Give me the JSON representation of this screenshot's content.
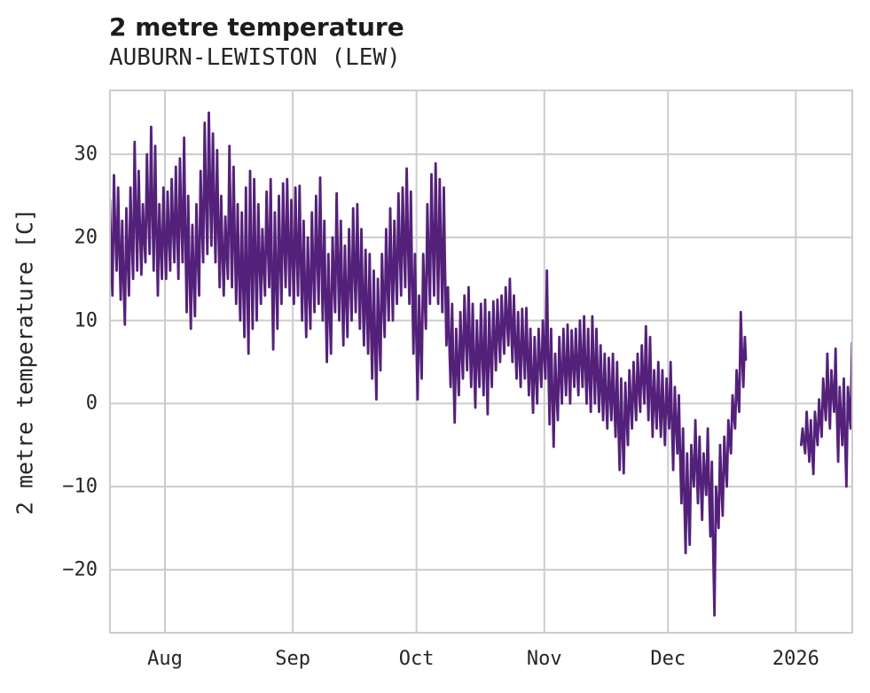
{
  "page": {
    "title": "2 metre temperature",
    "subtitle": "AUBURN-LEWISTON (LEW)"
  },
  "chart_data": {
    "type": "line",
    "title": "2 metre temperature",
    "subtitle": "AUBURN-LEWISTON (LEW)",
    "xlabel": "",
    "ylabel": "2 metre temperature [C]",
    "grid": true,
    "legend_position": "none",
    "line_color": "#54217a",
    "grid_color": "#cccccc",
    "text_color": "#262626",
    "background_color": "#ffffff",
    "x_axis": {
      "unit": "days since 2025-07-18 00:00",
      "domain": [
        0.45,
        180.9
      ],
      "ticks": [
        {
          "label": "Aug",
          "day": 14
        },
        {
          "label": "Sep",
          "day": 45
        },
        {
          "label": "Oct",
          "day": 75
        },
        {
          "label": "Nov",
          "day": 106
        },
        {
          "label": "Dec",
          "day": 136
        },
        {
          "label": "2026",
          "day": 167
        }
      ]
    },
    "y_axis": {
      "unit": "degrees C",
      "domain": [
        -27.7,
        37.8
      ],
      "ticks": [
        {
          "label": "30",
          "value": 30
        },
        {
          "label": "20",
          "value": 20
        },
        {
          "label": "10",
          "value": 10
        },
        {
          "label": "0",
          "value": 0
        },
        {
          "label": "−10",
          "value": -10
        },
        {
          "label": "−20",
          "value": -20
        }
      ]
    },
    "series": [
      {
        "name": "2 metre temperature, hourly trace (daily min/max envelope, estimated)",
        "segments": [
          {
            "start_day": 0,
            "start_date": "2025-07-18",
            "end_date": "2025-12-19",
            "daily_min_max": [
              [
                10.5,
                24.5
              ],
              [
                13,
                27.5
              ],
              [
                16,
                26
              ],
              [
                12.5,
                22
              ],
              [
                9.5,
                23.5
              ],
              [
                13,
                26
              ],
              [
                15,
                31.5
              ],
              [
                16,
                28
              ],
              [
                15.5,
                24
              ],
              [
                17,
                30
              ],
              [
                18,
                33.3
              ],
              [
                16,
                31
              ],
              [
                13,
                24
              ],
              [
                15,
                26
              ],
              [
                15,
                25.5
              ],
              [
                16,
                27
              ],
              [
                17,
                28.5
              ],
              [
                15,
                29.5
              ],
              [
                17,
                32
              ],
              [
                11,
                25
              ],
              [
                9,
                21.5
              ],
              [
                10.5,
                24
              ],
              [
                13,
                28
              ],
              [
                17,
                33.8
              ],
              [
                18,
                35
              ],
              [
                19,
                32.5
              ],
              [
                17,
                30.5
              ],
              [
                14,
                25
              ],
              [
                13,
                22.5
              ],
              [
                15,
                31
              ],
              [
                14,
                28.5
              ],
              [
                12,
                24
              ],
              [
                10,
                23
              ],
              [
                8,
                26
              ],
              [
                6,
                28
              ],
              [
                9,
                27
              ],
              [
                10,
                24
              ],
              [
                12,
                21
              ],
              [
                13,
                25.5
              ],
              [
                14,
                27
              ],
              [
                6.5,
                23
              ],
              [
                9,
                25
              ],
              [
                12,
                26.5
              ],
              [
                14,
                27
              ],
              [
                13,
                24.5
              ],
              [
                12,
                26
              ],
              [
                13,
                26.2
              ],
              [
                10,
                22
              ],
              [
                8,
                20
              ],
              [
                9,
                23
              ],
              [
                11,
                25
              ],
              [
                12,
                27.2
              ],
              [
                10,
                22
              ],
              [
                5,
                18
              ],
              [
                6,
                20
              ],
              [
                11,
                25.3
              ],
              [
                10,
                22
              ],
              [
                7,
                19
              ],
              [
                8,
                21
              ],
              [
                10,
                23.5
              ],
              [
                11,
                24
              ],
              [
                9,
                21
              ],
              [
                7,
                18.5
              ],
              [
                6,
                18
              ],
              [
                3,
                16
              ],
              [
                0.5,
                15
              ],
              [
                4,
                18
              ],
              [
                8,
                21
              ],
              [
                10,
                23.5
              ],
              [
                10,
                22
              ],
              [
                12,
                25.3
              ],
              [
                13,
                26
              ],
              [
                14,
                28.3
              ],
              [
                12,
                25.5
              ],
              [
                6,
                18
              ],
              [
                0.5,
                13
              ],
              [
                3,
                18
              ],
              [
                9,
                24
              ],
              [
                12,
                27.6
              ],
              [
                13,
                28.9
              ],
              [
                12,
                27
              ],
              [
                11,
                26
              ],
              [
                7,
                14
              ],
              [
                2,
                12
              ],
              [
                -2.3,
                9
              ],
              [
                1,
                11
              ],
              [
                3,
                13
              ],
              [
                4,
                14
              ],
              [
                2,
                12
              ],
              [
                -0.5,
                10
              ],
              [
                2,
                12
              ],
              [
                1,
                12.5
              ],
              [
                -1.3,
                11
              ],
              [
                2,
                12.3
              ],
              [
                4,
                12.5
              ],
              [
                5,
                13
              ],
              [
                6,
                14
              ],
              [
                7,
                15
              ],
              [
                5,
                13
              ],
              [
                3,
                11
              ],
              [
                2,
                11.4
              ],
              [
                3,
                11.5
              ],
              [
                1,
                9
              ],
              [
                -1.1,
                8
              ],
              [
                0,
                9
              ],
              [
                2,
                10
              ],
              [
                3,
                16
              ],
              [
                -2.5,
                9
              ],
              [
                -5.2,
                6
              ],
              [
                -2,
                8
              ],
              [
                0,
                9
              ],
              [
                1,
                9.5
              ],
              [
                0,
                8.8
              ],
              [
                2,
                9
              ],
              [
                1,
                10
              ],
              [
                2,
                10.5
              ],
              [
                0,
                9
              ],
              [
                -1,
                10.5
              ],
              [
                0,
                9
              ],
              [
                -1,
                7
              ],
              [
                -2,
                6
              ],
              [
                -3,
                5.5
              ],
              [
                -2,
                6
              ],
              [
                -4,
                5
              ],
              [
                -8,
                3
              ],
              [
                -8.4,
                2.5
              ],
              [
                -5,
                4
              ],
              [
                -3,
                5
              ],
              [
                -2,
                6
              ],
              [
                -1,
                7
              ],
              [
                0,
                9.3
              ],
              [
                -2,
                8
              ],
              [
                -4,
                4
              ],
              [
                -3,
                5
              ],
              [
                -4,
                4
              ],
              [
                -5,
                3
              ],
              [
                -3,
                5
              ],
              [
                -8,
                2
              ],
              [
                -6,
                1
              ],
              [
                -12,
                -3
              ],
              [
                -18,
                -6
              ],
              [
                -17,
                -5
              ],
              [
                -10,
                -2
              ],
              [
                -12,
                -4
              ],
              [
                -14,
                -6
              ],
              [
                -11,
                -3
              ],
              [
                -16,
                -7
              ],
              [
                -25.5,
                -10
              ],
              [
                -15,
                -5
              ],
              [
                -13.5,
                -4
              ],
              [
                -10,
                -2
              ],
              [
                -6,
                1
              ],
              [
                -3,
                4
              ],
              [
                -1,
                11
              ],
              [
                2,
                8
              ]
            ]
          },
          {
            "start_day": 168,
            "start_date": "2026-01-02",
            "end_date": "2026-01-14",
            "daily_min_max": [
              [
                -5,
                -3
              ],
              [
                -6,
                -1
              ],
              [
                -7,
                -2
              ],
              [
                -8.5,
                -1
              ],
              [
                -5,
                0.5
              ],
              [
                -4,
                3
              ],
              [
                -2,
                6
              ],
              [
                -3,
                4
              ],
              [
                -1,
                6.6
              ],
              [
                -7,
                2
              ],
              [
                -5,
                3
              ],
              [
                -10,
                2
              ],
              [
                -3,
                7.3
              ]
            ]
          }
        ]
      }
    ]
  }
}
